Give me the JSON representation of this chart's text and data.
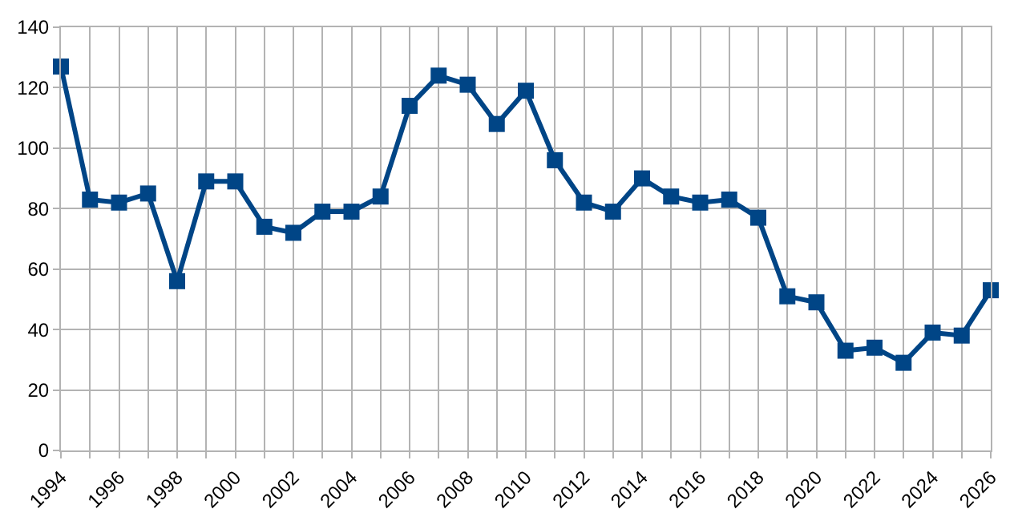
{
  "chart_data": {
    "type": "line",
    "x": [
      1994,
      1995,
      1996,
      1997,
      1998,
      1999,
      2000,
      2001,
      2002,
      2003,
      2004,
      2005,
      2006,
      2007,
      2008,
      2009,
      2010,
      2011,
      2012,
      2013,
      2014,
      2015,
      2016,
      2017,
      2018,
      2019,
      2020,
      2021,
      2022,
      2023,
      2024,
      2025,
      2026
    ],
    "series": [
      {
        "color": "#004586",
        "values": [
          127,
          83,
          82,
          85,
          56,
          89,
          89,
          74,
          72,
          79,
          79,
          84,
          114,
          124,
          121,
          108,
          119,
          96,
          82,
          79,
          90,
          84,
          82,
          83,
          77,
          51,
          49,
          33,
          34,
          29,
          39,
          38,
          53
        ]
      }
    ],
    "xlim": [
      1994,
      2026
    ],
    "xticks": [
      1994,
      {
        "value": 1995,
        "label": null
      },
      1996,
      {
        "value": 1997,
        "label": null
      },
      1998,
      {
        "value": 1999,
        "label": null
      },
      2000,
      {
        "value": 2001,
        "label": null
      },
      2002,
      {
        "value": 2003,
        "label": null
      },
      2004,
      {
        "value": 2005,
        "label": null
      },
      2006,
      {
        "value": 2007,
        "label": null
      },
      2008,
      {
        "value": 2009,
        "label": null
      },
      2010,
      {
        "value": 2011,
        "label": null
      },
      2012,
      {
        "value": 2013,
        "label": null
      },
      2014,
      {
        "value": 2015,
        "label": null
      },
      2016,
      {
        "value": 2017,
        "label": null
      },
      2018,
      {
        "value": 2019,
        "label": null
      },
      2020,
      {
        "value": 2021,
        "label": null
      },
      2022,
      {
        "value": 2023,
        "label": null
      },
      2024,
      {
        "value": 2025,
        "label": null
      },
      2026
    ],
    "ylim": [
      0,
      140
    ],
    "yticks": [
      0,
      20,
      40,
      60,
      80,
      100,
      120,
      140
    ],
    "grid": true,
    "legend": false,
    "marker": "square",
    "line_style": "solid"
  }
}
